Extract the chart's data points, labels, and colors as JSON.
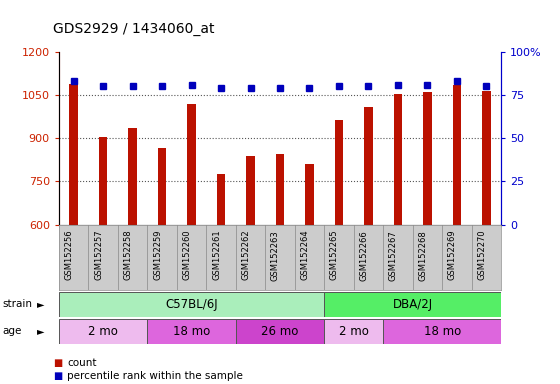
{
  "title": "GDS2929 / 1434060_at",
  "samples": [
    "GSM152256",
    "GSM152257",
    "GSM152258",
    "GSM152259",
    "GSM152260",
    "GSM152261",
    "GSM152262",
    "GSM152263",
    "GSM152264",
    "GSM152265",
    "GSM152266",
    "GSM152267",
    "GSM152268",
    "GSM152269",
    "GSM152270"
  ],
  "counts": [
    1090,
    905,
    935,
    865,
    1020,
    775,
    840,
    845,
    810,
    965,
    1010,
    1055,
    1060,
    1085,
    1065
  ],
  "percentiles": [
    83,
    80,
    80,
    80,
    81,
    79,
    79,
    79,
    79,
    80,
    80,
    81,
    81,
    83,
    80
  ],
  "ylim_left": [
    600,
    1200
  ],
  "ylim_right": [
    0,
    100
  ],
  "yticks_left": [
    600,
    750,
    900,
    1050,
    1200
  ],
  "yticks_right": [
    0,
    25,
    50,
    75,
    100
  ],
  "bar_color": "#bb1100",
  "dot_color": "#0000bb",
  "grid_color": "#555555",
  "axis_color_left": "#cc2200",
  "axis_color_right": "#0000cc",
  "strain_groups": [
    {
      "label": "C57BL/6J",
      "start": 0,
      "end": 9,
      "color": "#aaeebb"
    },
    {
      "label": "DBA/2J",
      "start": 9,
      "end": 15,
      "color": "#55ee66"
    }
  ],
  "age_groups": [
    {
      "label": "2 mo",
      "start": 0,
      "end": 3,
      "color": "#eebbee"
    },
    {
      "label": "18 mo",
      "start": 3,
      "end": 6,
      "color": "#dd66dd"
    },
    {
      "label": "26 mo",
      "start": 6,
      "end": 9,
      "color": "#cc44cc"
    },
    {
      "label": "2 mo",
      "start": 9,
      "end": 11,
      "color": "#eebbee"
    },
    {
      "label": "18 mo",
      "start": 11,
      "end": 15,
      "color": "#dd66dd"
    }
  ]
}
